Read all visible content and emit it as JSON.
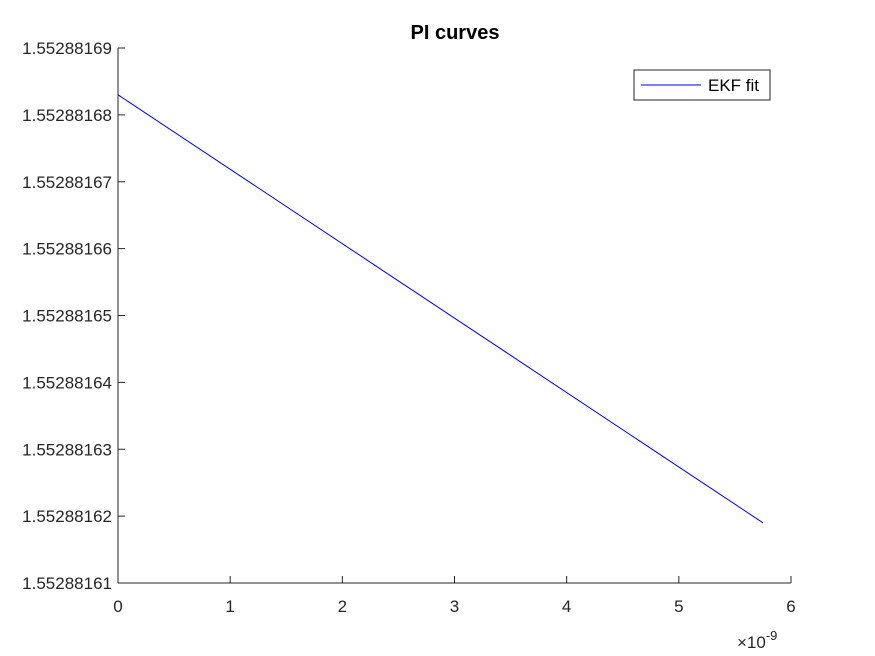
{
  "chart_data": {
    "type": "line",
    "title": "PI curves",
    "xlabel": "",
    "ylabel": "",
    "x_exponent_label": "×10",
    "x_exponent_power": "-9",
    "xlim": [
      0,
      6
    ],
    "ylim": [
      1.55288161,
      1.55288169
    ],
    "x_ticks": [
      0,
      1,
      2,
      3,
      4,
      5,
      6
    ],
    "x_tick_labels": [
      "0",
      "1",
      "2",
      "3",
      "4",
      "5",
      "6"
    ],
    "y_ticks": [
      1.55288161,
      1.55288162,
      1.55288163,
      1.55288164,
      1.55288165,
      1.55288166,
      1.55288167,
      1.55288168,
      1.55288169
    ],
    "y_tick_labels": [
      "1.55288161",
      "1.55288162",
      "1.55288163",
      "1.55288164",
      "1.55288165",
      "1.55288166",
      "1.55288167",
      "1.55288168",
      "1.55288169"
    ],
    "grid": false,
    "legend_position": "top-right",
    "series": [
      {
        "name": "EKF fit",
        "color": "#0000ff",
        "x": [
          0,
          5.75
        ],
        "y": [
          1.552881683,
          1.552881619
        ]
      }
    ]
  }
}
